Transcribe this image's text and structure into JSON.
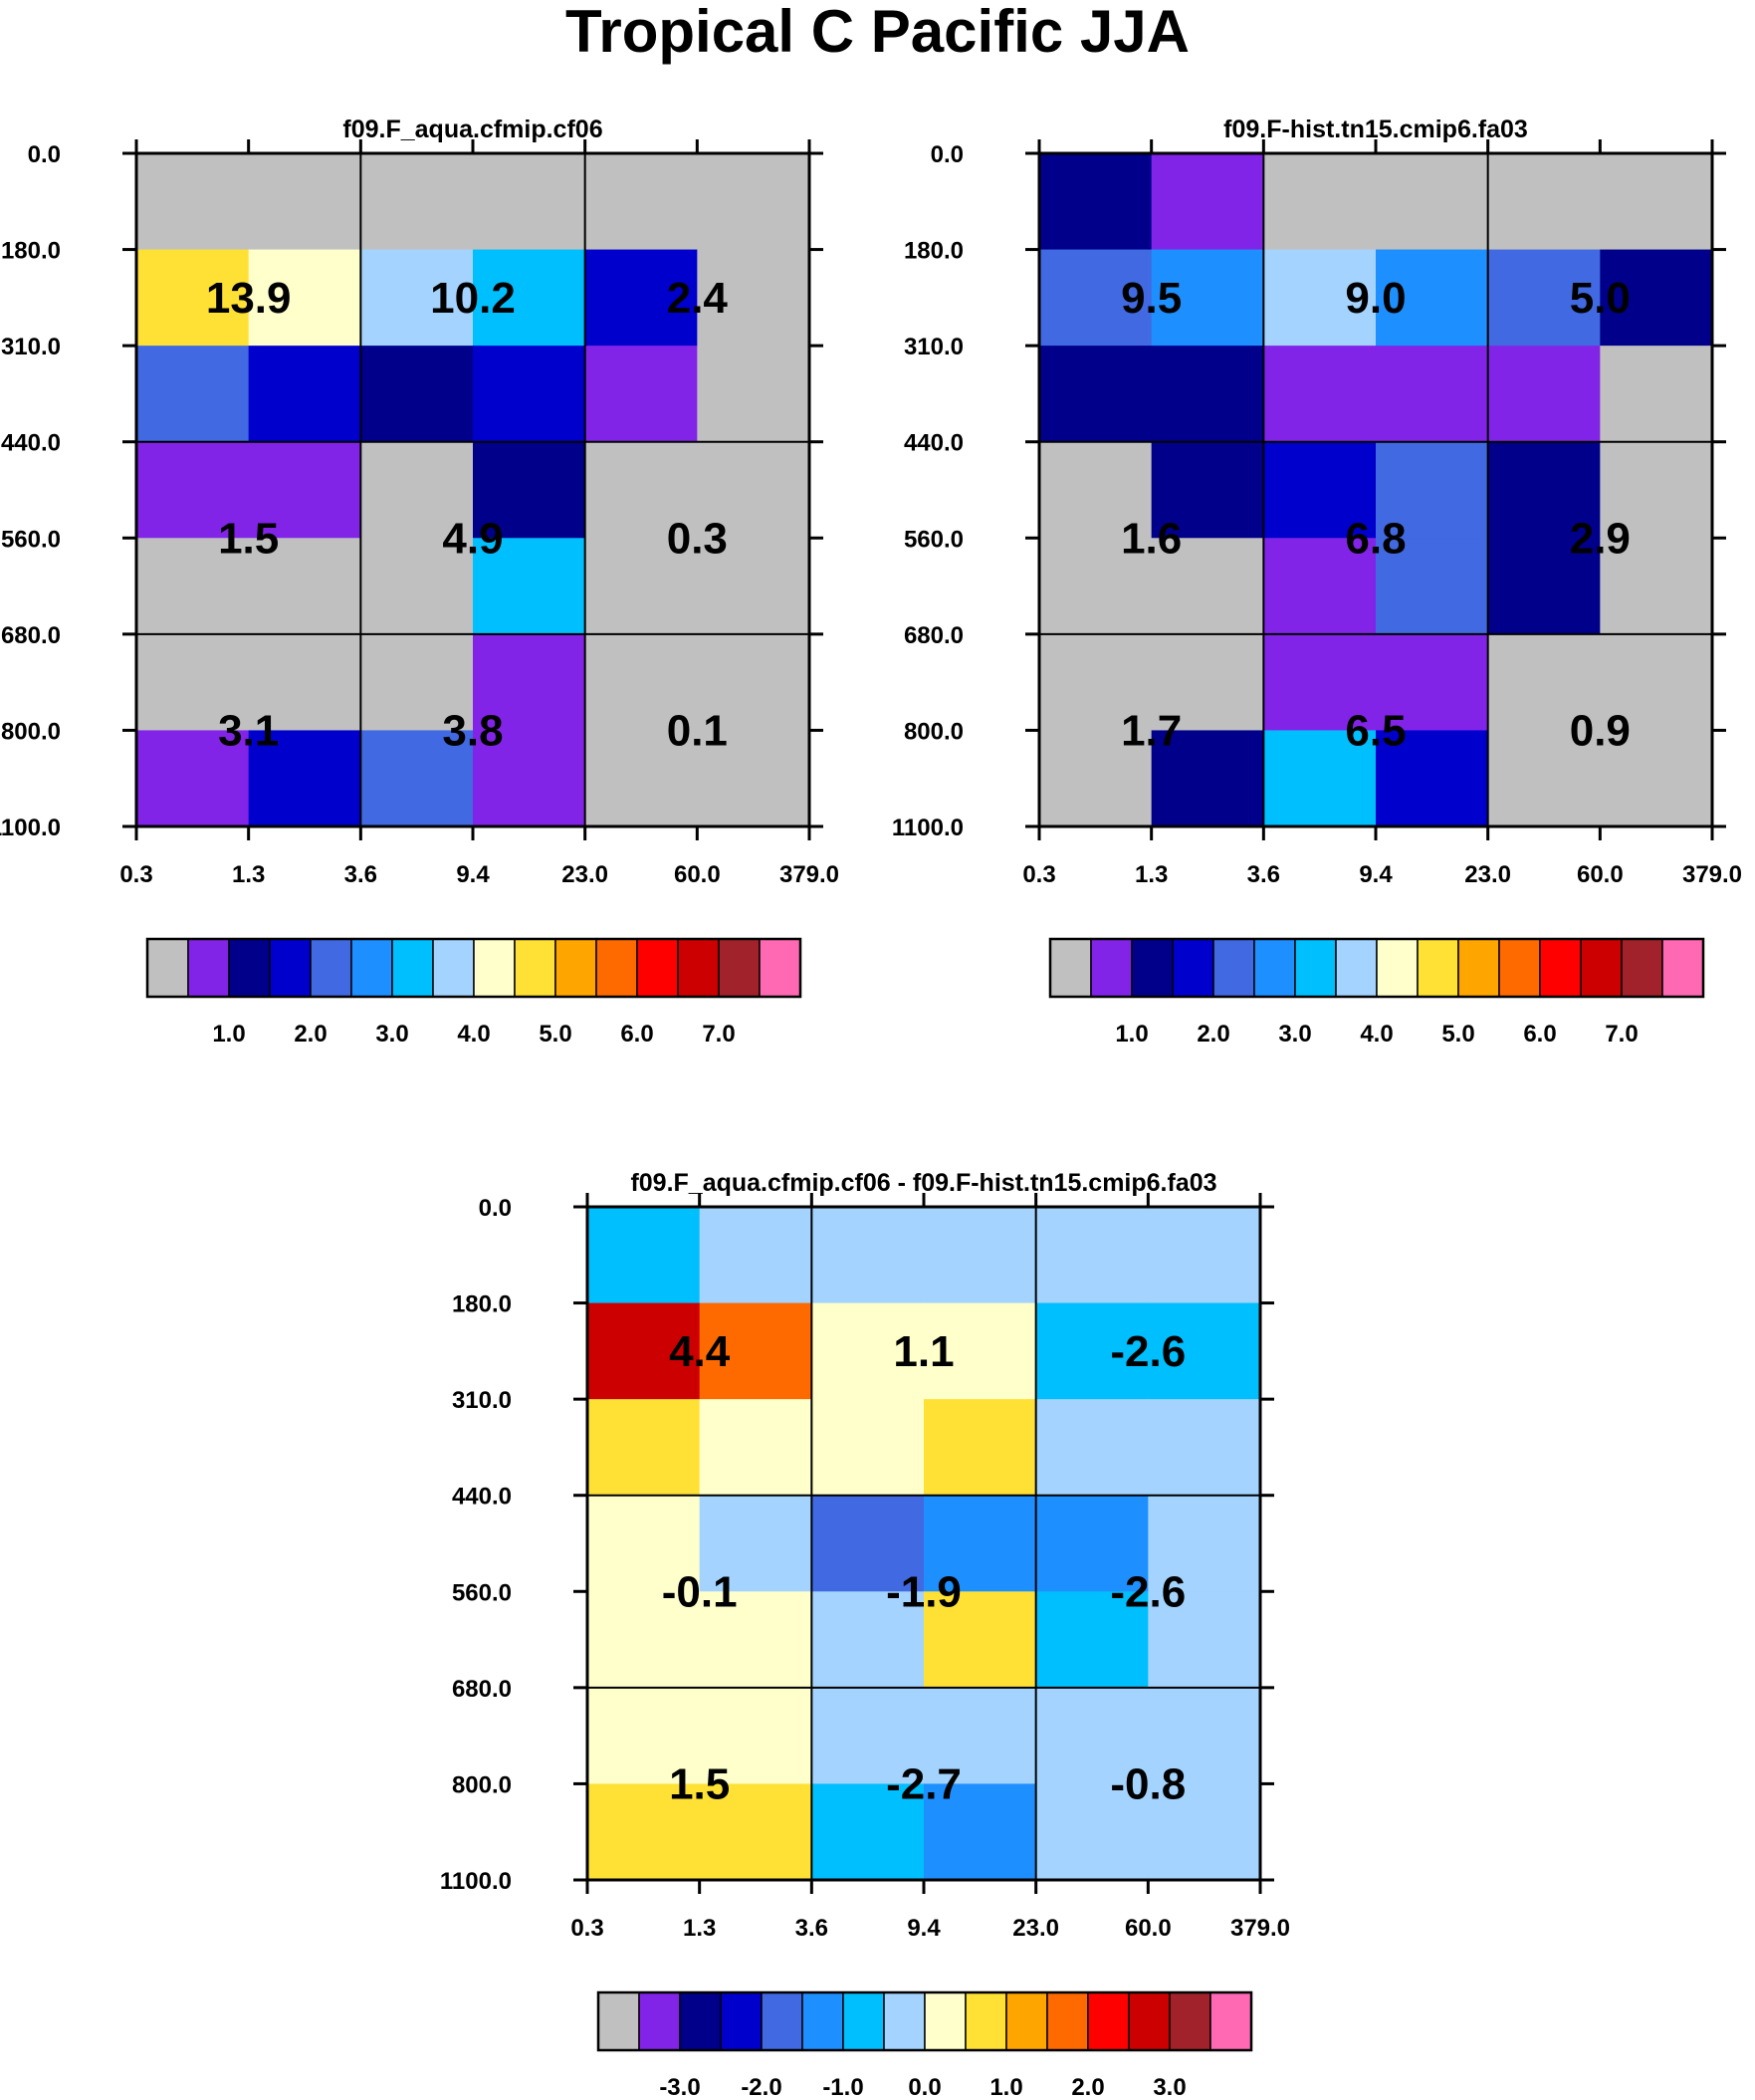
{
  "title": "Tropical C Pacific JJA",
  "axes": {
    "x_ticks": [
      "0.3",
      "1.3",
      "3.6",
      "9.4",
      "23.0",
      "60.0",
      "379.0"
    ],
    "y_ticks": [
      "0.0",
      "180.0",
      "310.0",
      "440.0",
      "560.0",
      "680.0",
      "800.0",
      "1100.0"
    ]
  },
  "palette": [
    "#c0c0c0",
    "#8224e8",
    "#00008b",
    "#0000cd",
    "#4169e1",
    "#1e8fff",
    "#00bfff",
    "#a3d3fe",
    "#ffffcc",
    "#ffe135",
    "#ffa500",
    "#ff6a00",
    "#ff0000",
    "#cc0000",
    "#a1222a",
    "#ff69b4"
  ],
  "chart_data": [
    {
      "type": "heatmap",
      "title": "f09.F_aqua.cfmip.cf06",
      "cells": [
        [
          0,
          0,
          0,
          0,
          0,
          0
        ],
        [
          9,
          8,
          7,
          6,
          3,
          0
        ],
        [
          4,
          3,
          2,
          3,
          1,
          0
        ],
        [
          1,
          1,
          0,
          2,
          0,
          0
        ],
        [
          0,
          0,
          0,
          6,
          0,
          0
        ],
        [
          0,
          0,
          0,
          1,
          0,
          0
        ],
        [
          1,
          3,
          4,
          1,
          0,
          0
        ]
      ],
      "block_labels": [
        [
          "13.9",
          "10.2",
          "2.4"
        ],
        [
          "1.5",
          "4.9",
          "0.3"
        ],
        [
          "3.1",
          "3.8",
          "0.1"
        ]
      ],
      "colorbar_ticks": [
        "1.0",
        "2.0",
        "3.0",
        "4.0",
        "5.0",
        "6.0",
        "7.0"
      ]
    },
    {
      "type": "heatmap",
      "title": "f09.F-hist.tn15.cmip6.fa03",
      "cells": [
        [
          2,
          1,
          0,
          0,
          0,
          0
        ],
        [
          4,
          5,
          7,
          5,
          4,
          2
        ],
        [
          2,
          2,
          1,
          1,
          1,
          0
        ],
        [
          0,
          2,
          3,
          4,
          2,
          0
        ],
        [
          0,
          0,
          1,
          4,
          2,
          0
        ],
        [
          0,
          0,
          1,
          1,
          0,
          0
        ],
        [
          0,
          2,
          6,
          3,
          0,
          0
        ]
      ],
      "block_labels": [
        [
          "9.5",
          "9.0",
          "5.0"
        ],
        [
          "1.6",
          "6.8",
          "2.9"
        ],
        [
          "1.7",
          "6.5",
          "0.9"
        ]
      ],
      "colorbar_ticks": [
        "1.0",
        "2.0",
        "3.0",
        "4.0",
        "5.0",
        "6.0",
        "7.0"
      ]
    },
    {
      "type": "heatmap",
      "title": "f09.F_aqua.cfmip.cf06 - f09.F-hist.tn15.cmip6.fa03",
      "cells": [
        [
          6,
          7,
          7,
          7,
          7,
          7
        ],
        [
          13,
          11,
          8,
          8,
          6,
          6
        ],
        [
          9,
          8,
          8,
          9,
          7,
          7
        ],
        [
          8,
          7,
          4,
          5,
          5,
          7
        ],
        [
          8,
          8,
          7,
          9,
          6,
          7
        ],
        [
          8,
          8,
          7,
          7,
          7,
          7
        ],
        [
          9,
          9,
          6,
          5,
          7,
          7
        ]
      ],
      "block_labels": [
        [
          "4.4",
          "1.1",
          "-2.6"
        ],
        [
          "-0.1",
          "-1.9",
          "-2.6"
        ],
        [
          "1.5",
          "-2.7",
          "-0.8"
        ]
      ],
      "colorbar_ticks": [
        "-3.0",
        "-2.0",
        "-1.0",
        "0.0",
        "1.0",
        "2.0",
        "3.0"
      ]
    }
  ]
}
